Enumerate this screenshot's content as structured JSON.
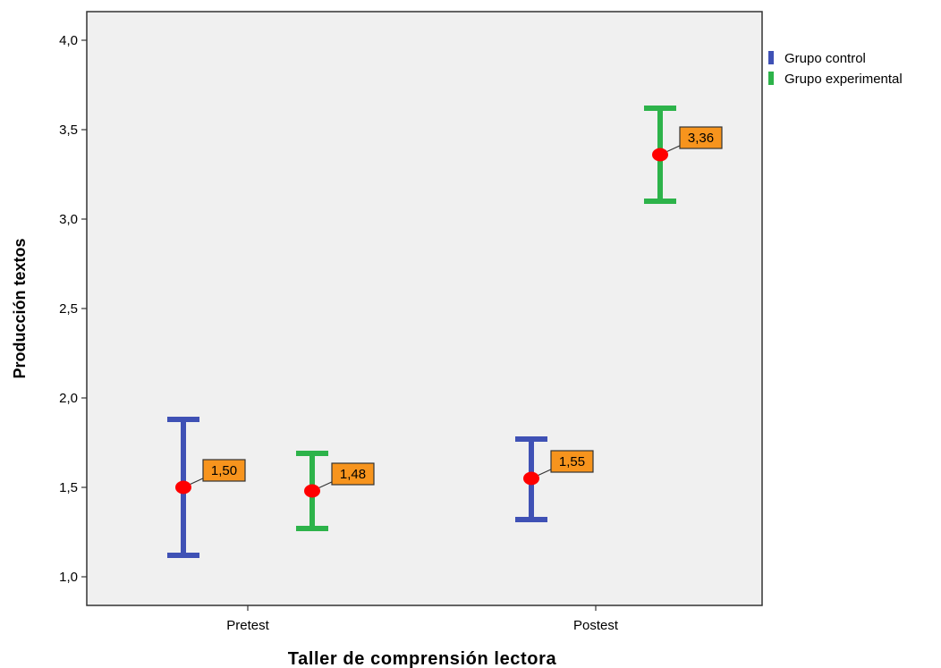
{
  "chart_data": {
    "type": "scatter",
    "title": "",
    "xlabel": "Taller de comprensión lectora",
    "ylabel": "Producción textos",
    "categories": [
      "Pretest",
      "Postest"
    ],
    "ylim": [
      0.84,
      4.16
    ],
    "yticks": [
      1.0,
      1.5,
      2.0,
      2.5,
      3.0,
      3.5,
      4.0
    ],
    "ytick_labels": [
      "1,0",
      "1,5",
      "2,0",
      "2,5",
      "3,0",
      "3,5",
      "4,0"
    ],
    "grid": false,
    "legend_position": "top-right",
    "marker_color": "#ff0000",
    "data_label_bg": "#f7941d",
    "plot_bg": "#f0f0f0",
    "series": [
      {
        "name": "Grupo control",
        "color": "#3f51b5",
        "points": [
          {
            "category": "Pretest",
            "mean": 1.5,
            "lower": 1.12,
            "upper": 1.88,
            "label": "1,50"
          },
          {
            "category": "Postest",
            "mean": 1.55,
            "lower": 1.32,
            "upper": 1.77,
            "label": "1,55"
          }
        ]
      },
      {
        "name": "Grupo experimental",
        "color": "#2db34a",
        "points": [
          {
            "category": "Pretest",
            "mean": 1.48,
            "lower": 1.27,
            "upper": 1.69,
            "label": "1,48"
          },
          {
            "category": "Postest",
            "mean": 3.36,
            "lower": 3.1,
            "upper": 3.62,
            "label": "3,36"
          }
        ]
      }
    ]
  }
}
